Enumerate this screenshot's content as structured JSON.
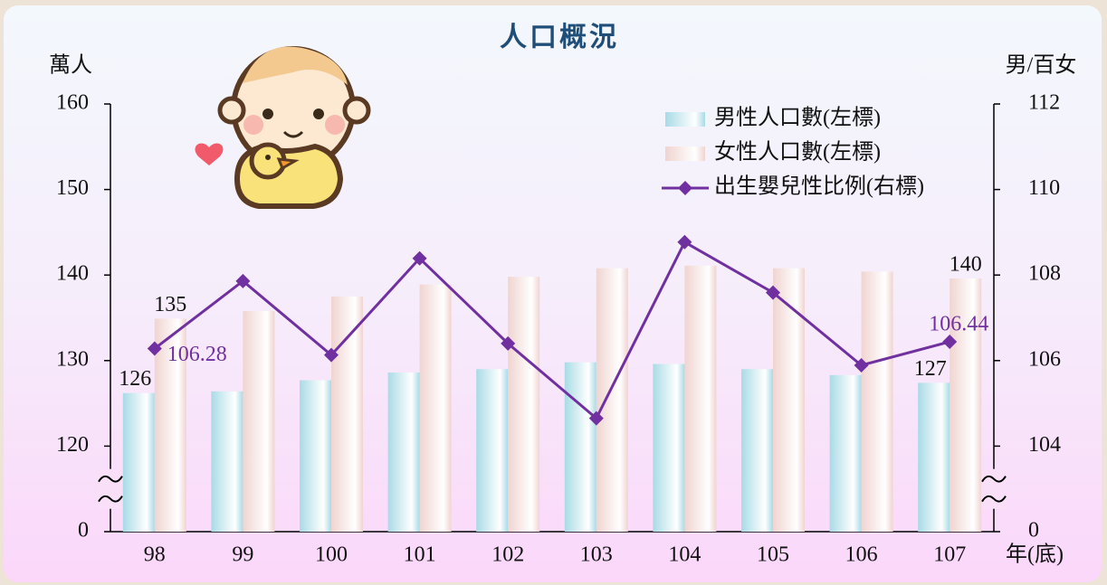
{
  "chart_data": {
    "type": "bar-line",
    "title": "人口概況",
    "y_label": "萬人",
    "y2_label": "男/百女",
    "x_label": "年(底)",
    "categories": [
      "98",
      "99",
      "100",
      "101",
      "102",
      "103",
      "104",
      "105",
      "106",
      "107"
    ],
    "series": [
      {
        "name": "男性人口數(左標)",
        "type": "bar",
        "color": "#a8dbe6",
        "values": [
          126.2,
          126.4,
          127.7,
          128.6,
          129.0,
          129.8,
          129.6,
          129.0,
          128.3,
          127.4
        ],
        "value_labels": [
          "126",
          null,
          null,
          null,
          null,
          null,
          null,
          null,
          null,
          "127"
        ]
      },
      {
        "name": "女性人口數(左標)",
        "type": "bar",
        "color": "#f0d4d0",
        "values": [
          134.9,
          135.8,
          137.5,
          138.9,
          139.8,
          140.8,
          141.1,
          140.8,
          140.4,
          139.6
        ],
        "value_labels": [
          "135",
          null,
          null,
          null,
          null,
          null,
          null,
          null,
          null,
          "140"
        ]
      },
      {
        "name": "出生嬰兒性比例(右標)",
        "type": "line",
        "axis": "y2",
        "color": "#7030a0",
        "values": [
          106.28,
          107.86,
          106.13,
          108.39,
          106.4,
          104.65,
          108.77,
          107.59,
          105.89,
          106.44
        ],
        "value_labels": [
          "106.28",
          null,
          null,
          null,
          null,
          null,
          null,
          null,
          null,
          "106.44"
        ]
      }
    ],
    "ylim": [
      0,
      160
    ],
    "ybreak": [
      0,
      120
    ],
    "yticks": [
      0,
      120,
      130,
      140,
      150,
      160
    ],
    "y2lim": [
      0,
      112
    ],
    "y2break": [
      0,
      104
    ],
    "y2ticks": [
      0,
      104,
      106,
      108,
      110,
      112
    ],
    "legend": "top-right"
  }
}
